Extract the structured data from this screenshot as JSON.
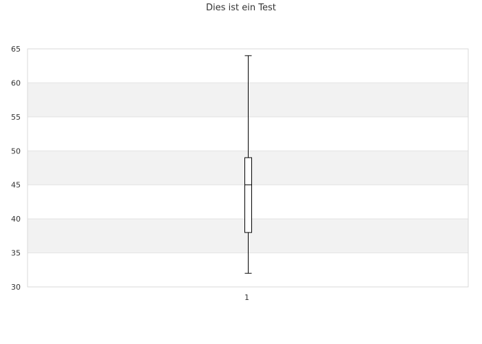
{
  "chart_data": {
    "type": "box",
    "title": "Dies ist ein Test",
    "xlabel": "",
    "ylabel": "",
    "categories": [
      "1"
    ],
    "boxes": [
      {
        "category": "1",
        "min": 32,
        "q1": 38,
        "median": 45,
        "q3": 49,
        "max": 64
      }
    ],
    "ylim": [
      30,
      65
    ],
    "yticks": [
      30,
      35,
      40,
      45,
      50,
      55,
      60,
      65
    ],
    "grid": true,
    "band_colors": [
      "#ffffff",
      "#f2f2f2"
    ],
    "box_color": "#000000",
    "legend": "none"
  }
}
